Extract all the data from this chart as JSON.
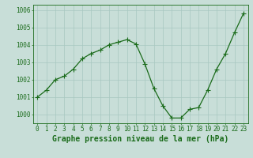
{
  "x": [
    0,
    1,
    2,
    3,
    4,
    5,
    6,
    7,
    8,
    9,
    10,
    11,
    12,
    13,
    14,
    15,
    16,
    17,
    18,
    19,
    20,
    21,
    22,
    23
  ],
  "y": [
    1001.0,
    1001.4,
    1002.0,
    1002.2,
    1002.6,
    1003.2,
    1003.5,
    1003.7,
    1004.0,
    1004.15,
    1004.3,
    1004.05,
    1002.9,
    1001.5,
    1000.5,
    999.8,
    999.8,
    1000.3,
    1000.4,
    1001.4,
    1002.6,
    1003.5,
    1004.7,
    1005.8
  ],
  "line_color": "#1a6b1a",
  "marker": "+",
  "marker_size": 4,
  "marker_linewidth": 0.8,
  "linewidth": 0.9,
  "bg_color": "#c8ded8",
  "grid_color": "#a8c8c0",
  "axis_color": "#1a6b1a",
  "xlabel": "Graphe pression niveau de la mer (hPa)",
  "ylim": [
    999.5,
    1006.3
  ],
  "xlim": [
    -0.5,
    23.5
  ],
  "yticks": [
    1000,
    1001,
    1002,
    1003,
    1004,
    1005,
    1006
  ],
  "xlabel_fontsize": 7,
  "tick_fontsize": 5.5
}
